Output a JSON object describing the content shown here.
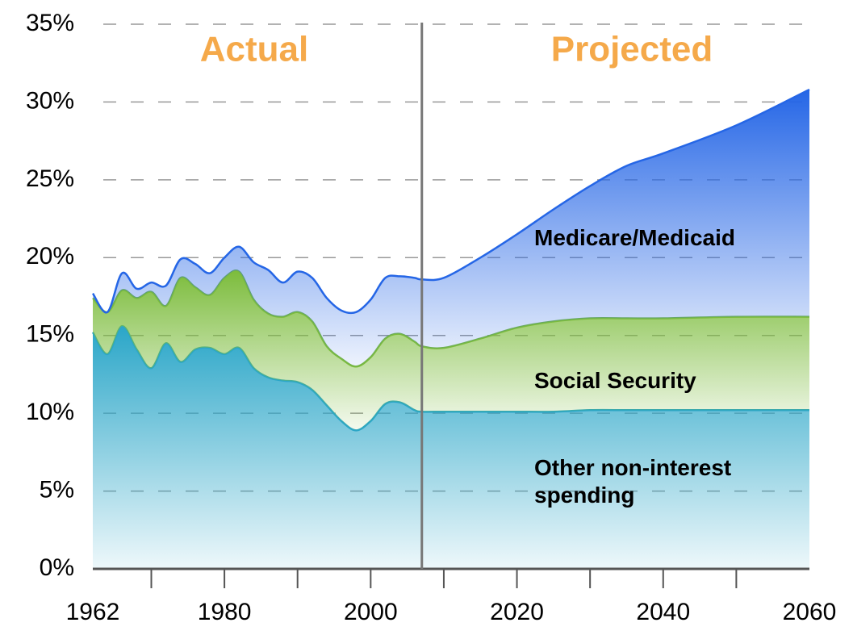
{
  "chart_data": {
    "type": "stacked_area",
    "annotations": [
      "Actual",
      "Projected"
    ],
    "annotation_color": "#f5a94a",
    "divider_x": 2007,
    "x": [
      1962,
      1964,
      1966,
      1968,
      1970,
      1972,
      1974,
      1976,
      1978,
      1980,
      1982,
      1984,
      1986,
      1988,
      1990,
      1992,
      1994,
      1996,
      1998,
      2000,
      2002,
      2004,
      2006,
      2007,
      2010,
      2015,
      2020,
      2025,
      2030,
      2035,
      2040,
      2050,
      2060
    ],
    "series": [
      {
        "name": "Other non-interest spending",
        "color": "#2aa6c8",
        "values": [
          15.2,
          13.8,
          15.6,
          14.1,
          12.9,
          14.5,
          13.3,
          14.1,
          14.2,
          13.8,
          14.2,
          12.9,
          12.3,
          12.1,
          12.0,
          11.5,
          10.5,
          9.5,
          8.9,
          9.5,
          10.6,
          10.7,
          10.2,
          10.1,
          10.1,
          10.1,
          10.1,
          10.1,
          10.2,
          10.2,
          10.2,
          10.2,
          10.2
        ]
      },
      {
        "name": "Social Security",
        "color": "#7cbc3c",
        "values": [
          2.2,
          2.7,
          2.3,
          3.3,
          4.9,
          2.4,
          5.4,
          4.0,
          3.4,
          4.9,
          4.9,
          4.4,
          4.1,
          4.1,
          4.5,
          4.4,
          3.8,
          4.0,
          4.1,
          4.1,
          4.2,
          4.4,
          4.4,
          4.2,
          4.1,
          4.7,
          5.4,
          5.8,
          5.9,
          5.9,
          5.9,
          6.0,
          6.0
        ]
      },
      {
        "name": "Medicare/Medicaid",
        "color": "#2566e6",
        "values": [
          0.3,
          0.0,
          1.1,
          0.6,
          0.6,
          1.3,
          1.2,
          1.5,
          1.4,
          1.3,
          1.6,
          2.4,
          2.8,
          2.2,
          2.6,
          2.8,
          3.1,
          3.1,
          3.5,
          3.7,
          3.9,
          3.7,
          4.1,
          4.3,
          4.5,
          5.2,
          6.0,
          7.2,
          8.5,
          9.8,
          10.6,
          12.3,
          14.6
        ]
      }
    ],
    "xlim": [
      1962,
      2060
    ],
    "xticks": [
      1962,
      1980,
      2000,
      2020,
      2040,
      2060
    ],
    "xminorticks": [
      1970,
      1990,
      2010,
      2030,
      2050
    ],
    "ylim": [
      0,
      35
    ],
    "yticks": [
      {
        "value": 0,
        "label": "0%"
      },
      {
        "value": 5,
        "label": "5%"
      },
      {
        "value": 10,
        "label": "10%"
      },
      {
        "value": 15,
        "label": "15%"
      },
      {
        "value": 20,
        "label": "20%"
      },
      {
        "value": 25,
        "label": "25%"
      },
      {
        "value": 30,
        "label": "30%"
      },
      {
        "value": 35,
        "label": "35%"
      }
    ],
    "grid": true
  }
}
